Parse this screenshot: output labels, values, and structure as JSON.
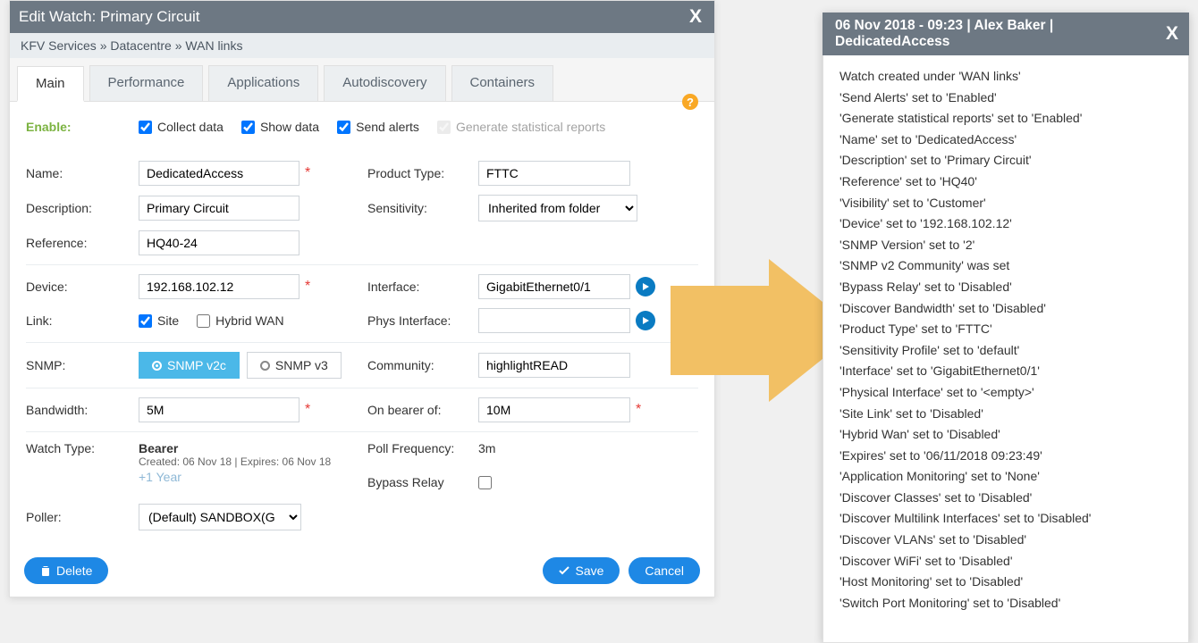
{
  "dialog": {
    "title": "Edit Watch: Primary Circuit",
    "breadcrumb": "KFV Services » Datacentre » WAN links",
    "tabs": [
      "Main",
      "Performance",
      "Applications",
      "Autodiscovery",
      "Containers"
    ],
    "active_tab": 0,
    "enable_label": "Enable:",
    "enable_opts": {
      "collect": "Collect data",
      "show": "Show data",
      "send": "Send alerts",
      "gen": "Generate statistical reports"
    },
    "labels": {
      "name": "Name:",
      "description": "Description:",
      "reference": "Reference:",
      "product_type": "Product Type:",
      "sensitivity": "Sensitivity:",
      "device": "Device:",
      "link": "Link:",
      "interface": "Interface:",
      "phys_interface": "Phys Interface:",
      "snmp": "SNMP:",
      "community": "Community:",
      "bandwidth": "Bandwidth:",
      "on_bearer": "On bearer of:",
      "watch_type": "Watch Type:",
      "poll_freq": "Poll Frequency:",
      "bypass_relay": "Bypass Relay",
      "poller": "Poller:"
    },
    "values": {
      "name": "DedicatedAccess",
      "description": "Primary Circuit",
      "reference": "HQ40-24",
      "product_type": "FTTC",
      "sensitivity": "Inherited from folder",
      "device": "192.168.102.12",
      "interface": "GigabitEthernet0/1",
      "phys_interface": "",
      "community": "highlightREAD",
      "bandwidth": "5M",
      "on_bearer": "10M",
      "watch_type": "Bearer",
      "watch_sub": "Created: 06 Nov 18 | Expires: 06 Nov 18",
      "plus_year": "+1 Year",
      "poll_freq": "3m",
      "poller": "(Default) SANDBOX(G"
    },
    "link_opts": {
      "site": "Site",
      "hybrid": "Hybrid WAN"
    },
    "snmp_opts": {
      "v2c": "SNMP v2c",
      "v3": "SNMP v3"
    },
    "footer": {
      "delete": "Delete",
      "save": "Save",
      "cancel": "Cancel"
    }
  },
  "colors": {
    "header_bg": "#6d7883",
    "accent_blue": "#1e88e5",
    "radio_sel": "#4bb8e8",
    "arrow": "#f2c064",
    "enable_green": "#7cb342",
    "req_red": "#e53935"
  },
  "audit": {
    "header": "06 Nov 2018 - 09:23 | Alex Baker | DedicatedAccess",
    "lines": [
      "Watch created under 'WAN links'",
      "'Send Alerts' set to 'Enabled'",
      "'Generate statistical reports' set to 'Enabled'",
      "'Name' set to 'DedicatedAccess'",
      "'Description' set to 'Primary Circuit'",
      "'Reference' set to 'HQ40'",
      "'Visibility' set to 'Customer'",
      "'Device' set to '192.168.102.12'",
      "'SNMP Version' set to '2'",
      "'SNMP v2 Community' was set",
      "'Bypass Relay' set to 'Disabled'",
      "'Discover Bandwidth' set to 'Disabled'",
      "'Product Type' set to 'FTTC'",
      "'Sensitivity Profile' set to 'default'",
      "'Interface' set to 'GigabitEthernet0/1'",
      "'Physical Interface' set to '<empty>'",
      "'Site Link' set to 'Disabled'",
      "'Hybrid Wan' set to 'Disabled'",
      "'Expires' set to '06/11/2018 09:23:49'",
      "'Application Monitoring' set to 'None'",
      "'Discover Classes' set to 'Disabled'",
      "'Discover Multilink Interfaces' set to 'Disabled'",
      "'Discover VLANs' set to 'Disabled'",
      "'Discover WiFi' set to 'Disabled'",
      "'Host Monitoring' set to 'Disabled'",
      "'Switch Port Monitoring' set to 'Disabled'"
    ]
  }
}
